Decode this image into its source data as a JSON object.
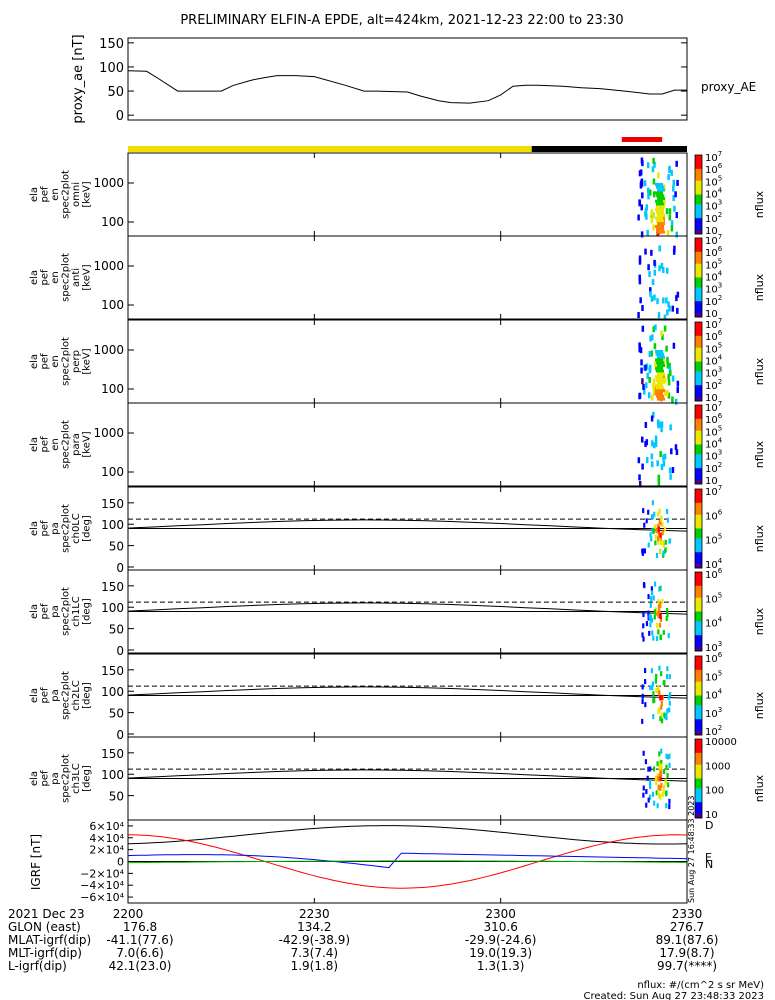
{
  "title": "PRELIMINARY ELFIN-A EPDE, alt=424km, 2021-12-23 22:00 to 23:30",
  "x_ticks": [
    "2200",
    "2230",
    "2300",
    "2330"
  ],
  "x_range_minutes": [
    0,
    90
  ],
  "panels": {
    "ae": {
      "ylabel": "proxy_ae [nT]",
      "legend": "proxy_AE",
      "yticks": [
        "150",
        "100",
        "50",
        "0"
      ],
      "ylim": [
        -10,
        160
      ],
      "chart_data": {
        "type": "line",
        "xlabel": "",
        "ylabel": "proxy_ae [nT]",
        "x": [
          0,
          3,
          5,
          8,
          11,
          15,
          17,
          20,
          22,
          24,
          27,
          30,
          35,
          38,
          40,
          45,
          47,
          50,
          52,
          55,
          58,
          60,
          62,
          64,
          66,
          70,
          73,
          76,
          80,
          84,
          86,
          88,
          90
        ],
        "y": [
          92,
          91,
          75,
          50,
          50,
          50,
          62,
          73,
          78,
          82,
          82,
          80,
          62,
          50,
          50,
          48,
          40,
          30,
          26,
          25,
          30,
          42,
          60,
          62,
          62,
          60,
          57,
          55,
          50,
          44,
          44,
          52,
          52
        ]
      }
    },
    "bars": {
      "top_colors": [
        "#f0e000",
        "#000000"
      ],
      "split_minute": 65,
      "red_span_minutes": [
        79.5,
        86
      ]
    },
    "spectra": [
      {
        "ylabel": [
          "ela",
          "pef",
          "en",
          "spec2plot",
          "omni",
          "[keV]"
        ],
        "yticks": [
          "1000",
          "100"
        ],
        "cbar_ticks": [
          "10^7",
          "10^6",
          "10^5",
          "10^4",
          "10^3",
          "10^2",
          "10"
        ],
        "cbar_label": "nflux"
      },
      {
        "ylabel": [
          "ela",
          "pef",
          "en",
          "spec2plot",
          "anti",
          "[keV]"
        ],
        "yticks": [
          "1000",
          "100"
        ],
        "cbar_ticks": [
          "10^7",
          "10^6",
          "10^5",
          "10^4",
          "10^3",
          "10^2",
          "10"
        ],
        "cbar_label": "nflux"
      },
      {
        "ylabel": [
          "ela",
          "pef",
          "en",
          "spec2plot",
          "perp",
          "[keV]"
        ],
        "yticks": [
          "1000",
          "100"
        ],
        "cbar_ticks": [
          "10^7",
          "10^6",
          "10^5",
          "10^4",
          "10^3",
          "10^2",
          "10"
        ],
        "cbar_label": "nflux"
      },
      {
        "ylabel": [
          "ela",
          "pef",
          "en",
          "spec2plot",
          "para",
          "[keV]"
        ],
        "yticks": [
          "1000",
          "100"
        ],
        "cbar_ticks": [
          "10^7",
          "10^6",
          "10^5",
          "10^4",
          "10^3",
          "10^2",
          "10"
        ],
        "cbar_label": "nflux"
      }
    ],
    "pitch": [
      {
        "ylabel": [
          "ela",
          "pef",
          "pa",
          "spec2plot",
          "ch0LC",
          "[deg]"
        ],
        "yticks": [
          "150",
          "100",
          "50",
          "0"
        ],
        "cbar_ticks": [
          "10^7",
          "10^6",
          "10^5",
          "10^4"
        ],
        "cbar_label": "nflux"
      },
      {
        "ylabel": [
          "ela",
          "pef",
          "pa",
          "spec2plot",
          "ch1LC",
          "[deg]"
        ],
        "yticks": [
          "150",
          "100",
          "50",
          "0"
        ],
        "cbar_ticks": [
          "10^6",
          "10^5",
          "10^4",
          "10^3"
        ],
        "cbar_label": "nflux"
      },
      {
        "ylabel": [
          "ela",
          "pef",
          "pa",
          "spec2plot",
          "ch2LC",
          "[deg]"
        ],
        "yticks": [
          "150",
          "100",
          "50",
          "0"
        ],
        "cbar_ticks": [
          "10^6",
          "10^5",
          "10^4",
          "10^3",
          "10^2"
        ],
        "cbar_label": "nflux"
      },
      {
        "ylabel": [
          "ela",
          "pef",
          "pa",
          "spec2plot",
          "ch3LC",
          "[deg]"
        ],
        "yticks": [
          "150",
          "100",
          "50"
        ],
        "cbar_ticks": [
          "10000",
          "1000",
          "100",
          "10"
        ],
        "cbar_label": "nflux"
      }
    ],
    "igrf": {
      "ylabel": "IGRF [nT]",
      "yticks": [
        "6×10⁴",
        "4×10⁴",
        "2×10⁴",
        "0",
        "−2×10⁴",
        "−4×10⁴",
        "−6×10⁴"
      ],
      "legend": [
        "D",
        "E",
        "N"
      ],
      "legend_colors": [
        "#ff0000",
        "#00b000",
        "#0000ff"
      ],
      "side_text": "Sun Aug 27 16:48:33 2023"
    }
  },
  "chart_data": {
    "type": "line",
    "title": "PRELIMINARY ELFIN-A EPDE, alt=424km, 2021-12-23 22:00 to 23:30",
    "xlabel": "",
    "ylabel": "proxy_ae [nT]",
    "x_ticks": [
      "2200",
      "2230",
      "2300",
      "2330"
    ],
    "series": [
      {
        "name": "proxy_AE",
        "x": [
          0,
          3,
          5,
          8,
          11,
          15,
          17,
          20,
          22,
          24,
          27,
          30,
          35,
          38,
          40,
          45,
          47,
          50,
          52,
          55,
          58,
          60,
          62,
          64,
          66,
          70,
          73,
          76,
          80,
          84,
          86,
          88,
          90
        ],
        "y": [
          92,
          91,
          75,
          50,
          50,
          50,
          62,
          73,
          78,
          82,
          82,
          80,
          62,
          50,
          50,
          48,
          40,
          30,
          26,
          25,
          30,
          42,
          60,
          62,
          62,
          60,
          57,
          55,
          50,
          44,
          44,
          52,
          52
        ]
      }
    ],
    "ylim": [
      -10,
      160
    ]
  },
  "footer": {
    "rows": [
      {
        "label": "2021 Dec 23",
        "values": [
          "2200",
          "2230",
          "2300",
          "2330"
        ]
      },
      {
        "label": "GLON (east)",
        "values": [
          "176.8",
          "134.2",
          "310.6",
          "276.7"
        ]
      },
      {
        "label": "MLAT-igrf(dip)",
        "values": [
          "-41.1(77.6)",
          "-42.9(-38.9)",
          "-29.9(-24.6)",
          "89.1(87.6)"
        ]
      },
      {
        "label": "MLT-igrf(dip)",
        "values": [
          "7.0(6.6)",
          "7.3(7.4)",
          "19.0(19.3)",
          "17.9(8.7)"
        ]
      },
      {
        "label": "L-igrf(dip)",
        "values": [
          "42.1(23.0)",
          "1.9(1.8)",
          "1.3(1.3)",
          "99.7(****)"
        ]
      }
    ],
    "units_note": "nflux: #/(cm^2 s sr MeV)",
    "created": "Created: Sun Aug 27 23:48:33 2023"
  }
}
